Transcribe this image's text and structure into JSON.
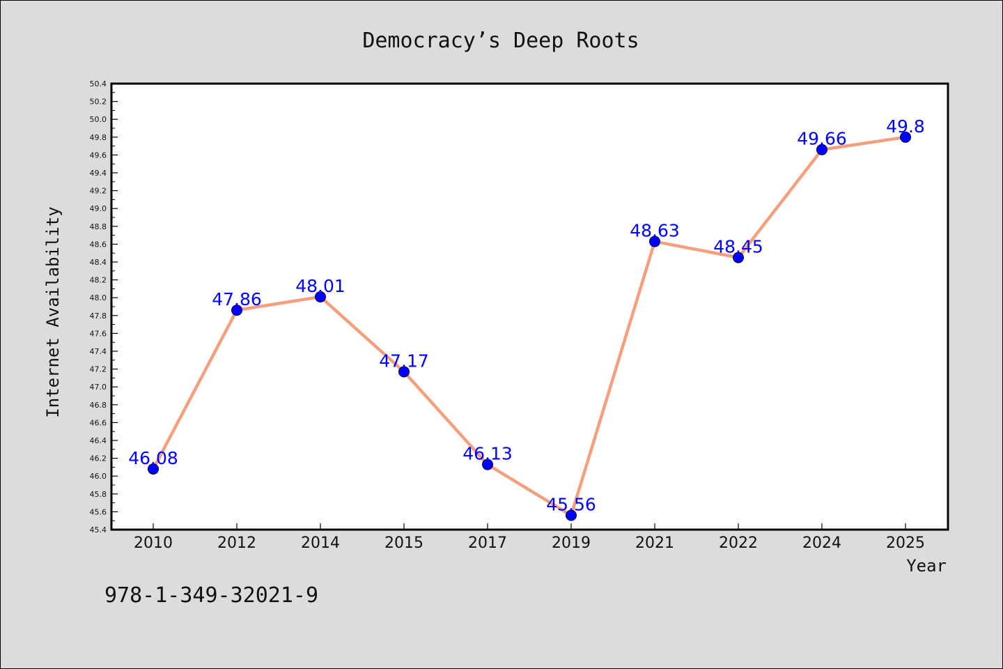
{
  "title": "Democracy’s Deep Roots",
  "footer": "978-1-349-32021-9",
  "colors": {
    "background": "#dcdcdc",
    "plot_background": "#ffffff",
    "line": "#f4a07e",
    "marker": "#0000ff",
    "data_label": "#0000ff"
  },
  "chart_data": {
    "type": "line",
    "title": "Democracy’s Deep Roots",
    "xlabel": "Year",
    "ylabel": "Internet Availability",
    "categories": [
      "2010",
      "2012",
      "2014",
      "2015",
      "2017",
      "2019",
      "2021",
      "2022",
      "2024",
      "2025"
    ],
    "series": [
      {
        "values": [
          46.08,
          47.86,
          48.01,
          47.17,
          46.13,
          45.56,
          48.63,
          48.45,
          49.66,
          49.8
        ],
        "labels": [
          "46.08",
          "47.86",
          "48.01",
          "47.17",
          "46.13",
          "45.56",
          "48.63",
          "48.45",
          "49.66",
          "49.8"
        ]
      }
    ],
    "ylim": [
      45.4,
      50.4
    ],
    "yticks": [
      "45.4",
      "45.6",
      "45.8",
      "46.0",
      "46.2",
      "46.4",
      "46.6",
      "46.8",
      "47.0",
      "47.2",
      "47.4",
      "47.6",
      "47.8",
      "48.0",
      "48.2",
      "48.4",
      "48.6",
      "48.8",
      "49.0",
      "49.2",
      "49.4",
      "49.6",
      "49.8",
      "50.0",
      "50.2",
      "50.4"
    ],
    "grid": false,
    "legend": "none"
  }
}
